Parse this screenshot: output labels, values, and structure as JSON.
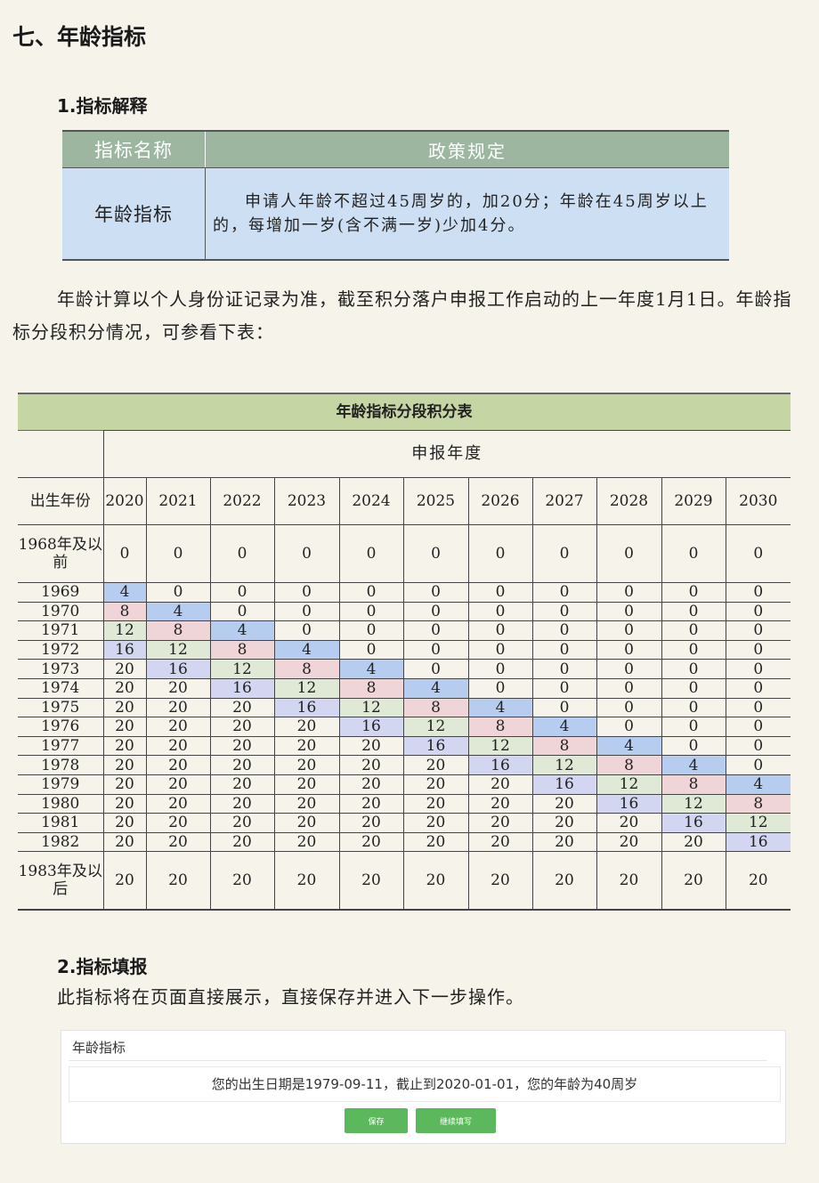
{
  "section_title": "七、年龄指标",
  "sub1_title": "1.指标解释",
  "policy": {
    "header_name": "指标名称",
    "header_rule": "政策规定",
    "name": "年龄指标",
    "rule": "申请人年龄不超过45周岁的，加20分；年龄在45周岁以上的，每增加一岁(含不满一岁)少加4分。"
  },
  "paragraph": "年龄计算以个人身份证记录为准，截至积分落户申报工作启动的上一年度1月1日。年龄指标分段积分情况，可参看下表：",
  "score_table": {
    "title": "年龄指标分段积分表",
    "year_header": "申报年度",
    "corner": "出生年份",
    "years": [
      "2020",
      "2021",
      "2022",
      "2023",
      "2024",
      "2025",
      "2026",
      "2027",
      "2028",
      "2029",
      "2030"
    ],
    "rows": [
      {
        "label": "1968年及以前",
        "values": [
          0,
          0,
          0,
          0,
          0,
          0,
          0,
          0,
          0,
          0,
          0
        ]
      },
      {
        "label": "1969",
        "values": [
          4,
          0,
          0,
          0,
          0,
          0,
          0,
          0,
          0,
          0,
          0
        ]
      },
      {
        "label": "1970",
        "values": [
          8,
          4,
          0,
          0,
          0,
          0,
          0,
          0,
          0,
          0,
          0
        ]
      },
      {
        "label": "1971",
        "values": [
          12,
          8,
          4,
          0,
          0,
          0,
          0,
          0,
          0,
          0,
          0
        ]
      },
      {
        "label": "1972",
        "values": [
          16,
          12,
          8,
          4,
          0,
          0,
          0,
          0,
          0,
          0,
          0
        ]
      },
      {
        "label": "1973",
        "values": [
          20,
          16,
          12,
          8,
          4,
          0,
          0,
          0,
          0,
          0,
          0
        ]
      },
      {
        "label": "1974",
        "values": [
          20,
          20,
          16,
          12,
          8,
          4,
          0,
          0,
          0,
          0,
          0
        ]
      },
      {
        "label": "1975",
        "values": [
          20,
          20,
          20,
          16,
          12,
          8,
          4,
          0,
          0,
          0,
          0
        ]
      },
      {
        "label": "1976",
        "values": [
          20,
          20,
          20,
          20,
          16,
          12,
          8,
          4,
          0,
          0,
          0
        ]
      },
      {
        "label": "1977",
        "values": [
          20,
          20,
          20,
          20,
          20,
          16,
          12,
          8,
          4,
          0,
          0
        ]
      },
      {
        "label": "1978",
        "values": [
          20,
          20,
          20,
          20,
          20,
          20,
          16,
          12,
          8,
          4,
          0
        ]
      },
      {
        "label": "1979",
        "values": [
          20,
          20,
          20,
          20,
          20,
          20,
          20,
          16,
          12,
          8,
          4
        ]
      },
      {
        "label": "1980",
        "values": [
          20,
          20,
          20,
          20,
          20,
          20,
          20,
          20,
          16,
          12,
          8
        ]
      },
      {
        "label": "1981",
        "values": [
          20,
          20,
          20,
          20,
          20,
          20,
          20,
          20,
          20,
          16,
          12
        ]
      },
      {
        "label": "1982",
        "values": [
          20,
          20,
          20,
          20,
          20,
          20,
          20,
          20,
          20,
          20,
          16
        ]
      },
      {
        "label": "1983年及以后",
        "values": [
          20,
          20,
          20,
          20,
          20,
          20,
          20,
          20,
          20,
          20,
          20
        ]
      }
    ],
    "highlight_colors": {
      "4": "#b7cdf0",
      "8": "#f0d5d8",
      "12": "#dfe9d6",
      "16": "#d2d6f0"
    }
  },
  "sub2_title": "2.指标填报",
  "fill_text": "此指标将在页面直接展示，直接保存并进入下一步操作。",
  "panel": {
    "title": "年龄指标",
    "message": "您的出生日期是1979-09-11，截止到2020-01-01，您的年龄为40周岁",
    "save_label": "保存",
    "continue_label": "继续填写"
  }
}
